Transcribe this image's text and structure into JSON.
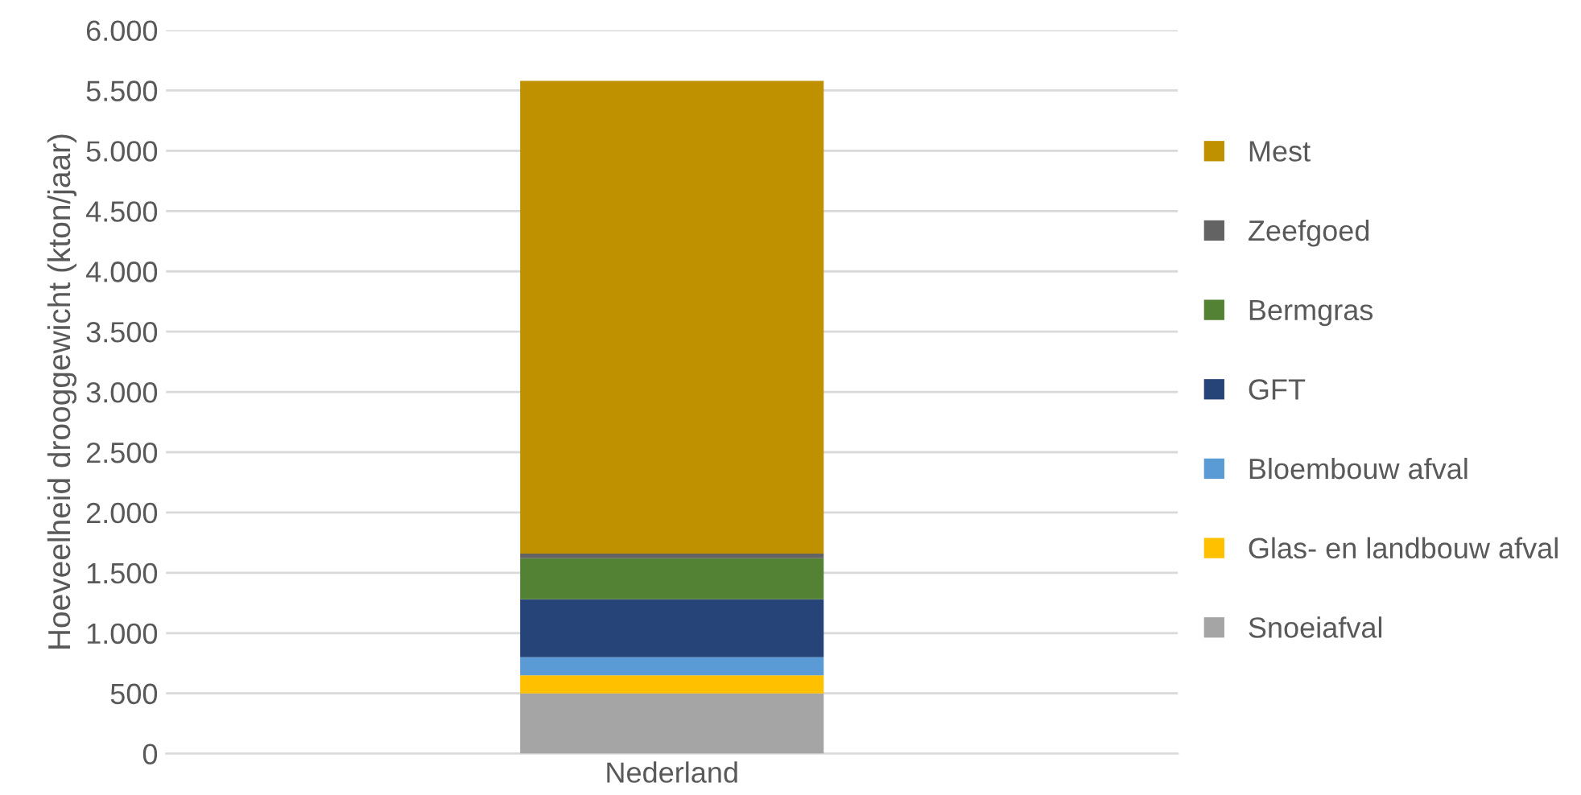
{
  "chart_data": {
    "type": "bar",
    "stacked": true,
    "ylabel": "Hoeveelheid drooggewicht (kton/jaar)",
    "categories": [
      "Nederland"
    ],
    "series": [
      {
        "name": "Snoeiafval",
        "color": "#a5a5a5",
        "values": [
          500
        ]
      },
      {
        "name": "Glas- en landbouw afval",
        "color": "#ffc000",
        "values": [
          150
        ]
      },
      {
        "name": "Bloembouw afval",
        "color": "#5b9bd5",
        "values": [
          150
        ]
      },
      {
        "name": "GFT",
        "color": "#264478",
        "values": [
          480
        ]
      },
      {
        "name": "Bermgras",
        "color": "#548235",
        "values": [
          340
        ]
      },
      {
        "name": "Zeefgoed",
        "color": "#636363",
        "values": [
          40
        ]
      },
      {
        "name": "Mest",
        "color": "#bf9000",
        "values": [
          3920
        ]
      }
    ],
    "ylim": [
      0,
      6000
    ],
    "yticks": [
      {
        "value": 0,
        "label": "0"
      },
      {
        "value": 500,
        "label": "500"
      },
      {
        "value": 1000,
        "label": "1.000"
      },
      {
        "value": 1500,
        "label": "1.500"
      },
      {
        "value": 2000,
        "label": "2.000"
      },
      {
        "value": 2500,
        "label": "2.500"
      },
      {
        "value": 3000,
        "label": "3.000"
      },
      {
        "value": 3500,
        "label": "3.500"
      },
      {
        "value": 4000,
        "label": "4.000"
      },
      {
        "value": 4500,
        "label": "4.500"
      },
      {
        "value": 5000,
        "label": "5.000"
      },
      {
        "value": 5500,
        "label": "5.500"
      },
      {
        "value": 6000,
        "label": "6.000"
      }
    ],
    "grid": "y",
    "legend": "right"
  }
}
